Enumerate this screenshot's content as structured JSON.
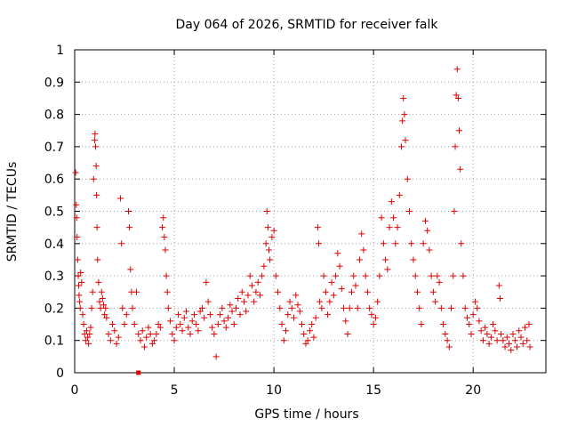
{
  "chart_data": {
    "type": "scatter",
    "title": "Day 064 of 2026, SRMTID for receiver falk",
    "xlabel": "GPS time / hours",
    "ylabel": "SRMTID / TECUs",
    "xlim": [
      0,
      23.65
    ],
    "ylim": [
      0,
      1
    ],
    "xticks": [
      0,
      5,
      10,
      15,
      20
    ],
    "xtick_labels": [
      "0",
      "5",
      "10",
      "15",
      "20"
    ],
    "yticks": [
      0,
      0.1,
      0.2,
      0.3,
      0.4,
      0.5,
      0.6,
      0.7,
      0.8,
      0.9,
      1
    ],
    "ytick_labels": [
      "0",
      "0.1",
      "0.2",
      "0.3",
      "0.4",
      "0.5",
      "0.6",
      "0.7",
      "0.8",
      "0.9",
      "1"
    ],
    "grid": true,
    "marker": "+",
    "color": "#e00000",
    "series": [
      {
        "name": "SRMTID",
        "points": [
          [
            0.05,
            0.62
          ],
          [
            0.08,
            0.52
          ],
          [
            0.1,
            0.48
          ],
          [
            0.12,
            0.42
          ],
          [
            0.15,
            0.35
          ],
          [
            0.18,
            0.3
          ],
          [
            0.2,
            0.27
          ],
          [
            0.22,
            0.24
          ],
          [
            0.25,
            0.22
          ],
          [
            0.28,
            0.2
          ],
          [
            0.3,
            0.31
          ],
          [
            0.35,
            0.28
          ],
          [
            0.4,
            0.18
          ],
          [
            0.45,
            0.15
          ],
          [
            0.5,
            0.12
          ],
          [
            0.55,
            0.1
          ],
          [
            0.6,
            0.13
          ],
          [
            0.65,
            0.11
          ],
          [
            0.7,
            0.09
          ],
          [
            0.75,
            0.12
          ],
          [
            0.8,
            0.14
          ],
          [
            0.85,
            0.2
          ],
          [
            0.9,
            0.25
          ],
          [
            0.95,
            0.6
          ],
          [
            1.0,
            0.72
          ],
          [
            1.02,
            0.74
          ],
          [
            1.05,
            0.7
          ],
          [
            1.08,
            0.64
          ],
          [
            1.1,
            0.55
          ],
          [
            1.12,
            0.45
          ],
          [
            1.15,
            0.35
          ],
          [
            1.2,
            0.28
          ],
          [
            1.25,
            0.22
          ],
          [
            1.3,
            0.2
          ],
          [
            1.35,
            0.25
          ],
          [
            1.4,
            0.23
          ],
          [
            1.45,
            0.21
          ],
          [
            1.5,
            0.18
          ],
          [
            1.55,
            0.2
          ],
          [
            1.6,
            0.17
          ],
          [
            1.7,
            0.12
          ],
          [
            1.8,
            0.1
          ],
          [
            1.9,
            0.15
          ],
          [
            2.0,
            0.13
          ],
          [
            2.1,
            0.09
          ],
          [
            2.2,
            0.11
          ],
          [
            2.3,
            0.54
          ],
          [
            2.35,
            0.4
          ],
          [
            2.4,
            0.2
          ],
          [
            2.5,
            0.15
          ],
          [
            2.6,
            0.18
          ],
          [
            2.7,
            0.5
          ],
          [
            2.75,
            0.45
          ],
          [
            2.8,
            0.32
          ],
          [
            2.85,
            0.25
          ],
          [
            2.9,
            0.2
          ],
          [
            3.0,
            0.15
          ],
          [
            3.1,
            0.25
          ],
          [
            3.2,
            0.12
          ],
          [
            3.3,
            0.1
          ],
          [
            3.4,
            0.13
          ],
          [
            3.5,
            0.08
          ],
          [
            3.6,
            0.11
          ],
          [
            3.7,
            0.14
          ],
          [
            3.8,
            0.12
          ],
          [
            3.9,
            0.09
          ],
          [
            4.0,
            0.1
          ],
          [
            4.1,
            0.12
          ],
          [
            4.2,
            0.15
          ],
          [
            4.3,
            0.14
          ],
          [
            4.4,
            0.45
          ],
          [
            4.45,
            0.48
          ],
          [
            4.5,
            0.42
          ],
          [
            4.55,
            0.38
          ],
          [
            4.6,
            0.3
          ],
          [
            4.65,
            0.25
          ],
          [
            4.7,
            0.2
          ],
          [
            4.8,
            0.16
          ],
          [
            4.9,
            0.12
          ],
          [
            5.0,
            0.1
          ],
          [
            5.1,
            0.14
          ],
          [
            5.2,
            0.18
          ],
          [
            5.3,
            0.15
          ],
          [
            5.4,
            0.13
          ],
          [
            5.5,
            0.17
          ],
          [
            5.6,
            0.19
          ],
          [
            5.7,
            0.14
          ],
          [
            5.8,
            0.12
          ],
          [
            5.9,
            0.16
          ],
          [
            6.0,
            0.18
          ],
          [
            6.1,
            0.15
          ],
          [
            6.2,
            0.13
          ],
          [
            6.3,
            0.19
          ],
          [
            6.4,
            0.2
          ],
          [
            6.5,
            0.17
          ],
          [
            6.6,
            0.28
          ],
          [
            6.7,
            0.22
          ],
          [
            6.8,
            0.18
          ],
          [
            6.9,
            0.14
          ],
          [
            7.0,
            0.12
          ],
          [
            7.1,
            0.05
          ],
          [
            7.2,
            0.15
          ],
          [
            7.3,
            0.18
          ],
          [
            7.4,
            0.2
          ],
          [
            7.5,
            0.16
          ],
          [
            7.6,
            0.14
          ],
          [
            7.7,
            0.17
          ],
          [
            7.8,
            0.21
          ],
          [
            7.9,
            0.19
          ],
          [
            8.0,
            0.15
          ],
          [
            8.1,
            0.2
          ],
          [
            8.2,
            0.23
          ],
          [
            8.3,
            0.18
          ],
          [
            8.4,
            0.25
          ],
          [
            8.5,
            0.22
          ],
          [
            8.6,
            0.19
          ],
          [
            8.7,
            0.24
          ],
          [
            8.8,
            0.3
          ],
          [
            8.9,
            0.27
          ],
          [
            9.0,
            0.22
          ],
          [
            9.1,
            0.25
          ],
          [
            9.2,
            0.28
          ],
          [
            9.3,
            0.24
          ],
          [
            9.4,
            0.3
          ],
          [
            9.5,
            0.33
          ],
          [
            9.6,
            0.4
          ],
          [
            9.65,
            0.5
          ],
          [
            9.7,
            0.45
          ],
          [
            9.75,
            0.38
          ],
          [
            9.8,
            0.35
          ],
          [
            9.9,
            0.42
          ],
          [
            10.0,
            0.44
          ],
          [
            10.1,
            0.3
          ],
          [
            10.2,
            0.25
          ],
          [
            10.3,
            0.2
          ],
          [
            10.4,
            0.15
          ],
          [
            10.5,
            0.1
          ],
          [
            10.6,
            0.13
          ],
          [
            10.7,
            0.18
          ],
          [
            10.8,
            0.22
          ],
          [
            10.9,
            0.2
          ],
          [
            11.0,
            0.17
          ],
          [
            11.1,
            0.24
          ],
          [
            11.2,
            0.21
          ],
          [
            11.3,
            0.19
          ],
          [
            11.4,
            0.15
          ],
          [
            11.5,
            0.12
          ],
          [
            11.6,
            0.09
          ],
          [
            11.7,
            0.1
          ],
          [
            11.8,
            0.13
          ],
          [
            11.9,
            0.15
          ],
          [
            12.0,
            0.11
          ],
          [
            12.1,
            0.17
          ],
          [
            12.2,
            0.45
          ],
          [
            12.25,
            0.4
          ],
          [
            12.3,
            0.22
          ],
          [
            12.4,
            0.2
          ],
          [
            12.5,
            0.3
          ],
          [
            12.6,
            0.25
          ],
          [
            12.7,
            0.18
          ],
          [
            12.8,
            0.22
          ],
          [
            12.9,
            0.28
          ],
          [
            13.0,
            0.24
          ],
          [
            13.1,
            0.3
          ],
          [
            13.2,
            0.37
          ],
          [
            13.3,
            0.33
          ],
          [
            13.4,
            0.26
          ],
          [
            13.5,
            0.2
          ],
          [
            13.6,
            0.16
          ],
          [
            13.7,
            0.12
          ],
          [
            13.8,
            0.2
          ],
          [
            13.9,
            0.25
          ],
          [
            14.0,
            0.3
          ],
          [
            14.1,
            0.27
          ],
          [
            14.2,
            0.2
          ],
          [
            14.3,
            0.35
          ],
          [
            14.4,
            0.43
          ],
          [
            14.5,
            0.38
          ],
          [
            14.6,
            0.3
          ],
          [
            14.7,
            0.25
          ],
          [
            14.8,
            0.2
          ],
          [
            14.9,
            0.18
          ],
          [
            15.0,
            0.15
          ],
          [
            15.1,
            0.17
          ],
          [
            15.2,
            0.22
          ],
          [
            15.3,
            0.3
          ],
          [
            15.4,
            0.48
          ],
          [
            15.5,
            0.4
          ],
          [
            15.6,
            0.35
          ],
          [
            15.7,
            0.32
          ],
          [
            15.8,
            0.45
          ],
          [
            15.9,
            0.53
          ],
          [
            16.0,
            0.48
          ],
          [
            16.1,
            0.4
          ],
          [
            16.2,
            0.45
          ],
          [
            16.3,
            0.55
          ],
          [
            16.4,
            0.7
          ],
          [
            16.45,
            0.78
          ],
          [
            16.5,
            0.85
          ],
          [
            16.55,
            0.8
          ],
          [
            16.6,
            0.72
          ],
          [
            16.7,
            0.6
          ],
          [
            16.8,
            0.5
          ],
          [
            16.9,
            0.4
          ],
          [
            17.0,
            0.35
          ],
          [
            17.1,
            0.3
          ],
          [
            17.2,
            0.25
          ],
          [
            17.3,
            0.2
          ],
          [
            17.4,
            0.15
          ],
          [
            17.5,
            0.4
          ],
          [
            17.6,
            0.47
          ],
          [
            17.7,
            0.44
          ],
          [
            17.8,
            0.38
          ],
          [
            17.9,
            0.3
          ],
          [
            18.0,
            0.25
          ],
          [
            18.1,
            0.22
          ],
          [
            18.2,
            0.3
          ],
          [
            18.3,
            0.28
          ],
          [
            18.4,
            0.2
          ],
          [
            18.5,
            0.15
          ],
          [
            18.6,
            0.12
          ],
          [
            18.7,
            0.1
          ],
          [
            18.8,
            0.08
          ],
          [
            18.9,
            0.2
          ],
          [
            19.0,
            0.3
          ],
          [
            19.05,
            0.5
          ],
          [
            19.1,
            0.7
          ],
          [
            19.15,
            0.86
          ],
          [
            19.2,
            0.94
          ],
          [
            19.25,
            0.85
          ],
          [
            19.3,
            0.75
          ],
          [
            19.35,
            0.63
          ],
          [
            19.4,
            0.4
          ],
          [
            19.5,
            0.3
          ],
          [
            19.6,
            0.2
          ],
          [
            19.7,
            0.17
          ],
          [
            19.8,
            0.15
          ],
          [
            19.9,
            0.12
          ],
          [
            20.0,
            0.18
          ],
          [
            20.1,
            0.22
          ],
          [
            20.2,
            0.2
          ],
          [
            20.3,
            0.16
          ],
          [
            20.4,
            0.13
          ],
          [
            20.5,
            0.1
          ],
          [
            20.6,
            0.14
          ],
          [
            20.7,
            0.12
          ],
          [
            20.8,
            0.09
          ],
          [
            20.9,
            0.11
          ],
          [
            21.0,
            0.15
          ],
          [
            21.1,
            0.13
          ],
          [
            21.2,
            0.1
          ],
          [
            21.3,
            0.27
          ],
          [
            21.35,
            0.23
          ],
          [
            21.4,
            0.12
          ],
          [
            21.5,
            0.1
          ],
          [
            21.6,
            0.08
          ],
          [
            21.7,
            0.11
          ],
          [
            21.8,
            0.09
          ],
          [
            21.9,
            0.07
          ],
          [
            22.0,
            0.12
          ],
          [
            22.1,
            0.1
          ],
          [
            22.2,
            0.08
          ],
          [
            22.3,
            0.13
          ],
          [
            22.4,
            0.11
          ],
          [
            22.5,
            0.09
          ],
          [
            22.6,
            0.14
          ],
          [
            22.7,
            0.1
          ],
          [
            22.8,
            0.15
          ],
          [
            22.85,
            0.08
          ]
        ]
      }
    ],
    "outlier_markers": [
      [
        3.2,
        0.0
      ]
    ]
  }
}
